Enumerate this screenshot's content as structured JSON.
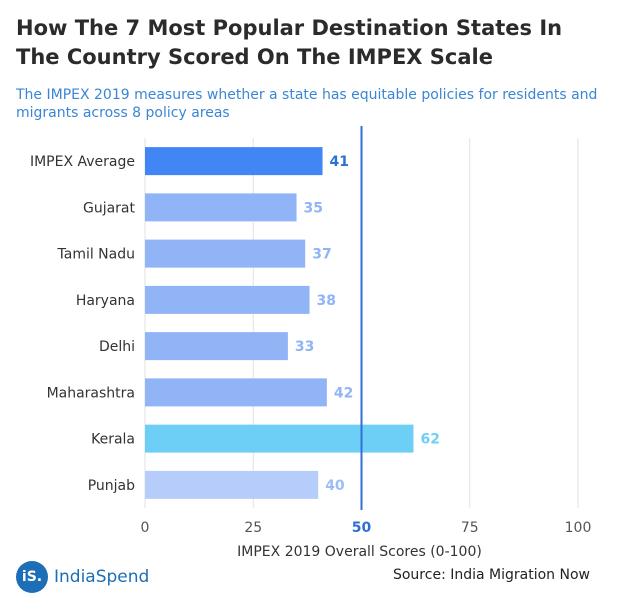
{
  "header": {
    "title": "How The 7 Most Popular Destination States In The Country Scored On The IMPEX Scale",
    "subtitle": "The IMPEX 2019 measures whether a state has equitable policies for residents and migrants across 8 policy areas"
  },
  "chart_data": {
    "type": "bar",
    "orientation": "horizontal",
    "categories": [
      "IMPEX Average",
      "Gujarat",
      "Tamil Nadu",
      "Haryana",
      "Delhi",
      "Maharashtra",
      "Kerala",
      "Punjab"
    ],
    "values": [
      41,
      35,
      37,
      38,
      33,
      42,
      62,
      40
    ],
    "bar_colors": [
      "#4285f4",
      "#91b4f7",
      "#91b4f7",
      "#91b4f7",
      "#91b4f7",
      "#91b4f7",
      "#6dcff6",
      "#b6cdfb"
    ],
    "label_colors": [
      "#2f6fd6",
      "#91b4f7",
      "#91b4f7",
      "#91b4f7",
      "#91b4f7",
      "#91b4f7",
      "#6dcff6",
      "#9bbcf8"
    ],
    "xlabel": "IMPEX 2019 Overall Scores (0-100)",
    "xlim": [
      0,
      100
    ],
    "xticks": [
      "0",
      "25",
      "50",
      "75",
      "100"
    ],
    "xtick_values": [
      0,
      25,
      50,
      75,
      100
    ],
    "reference_line": {
      "value": 50,
      "color": "#2f6fd6"
    }
  },
  "footer": {
    "logo_mark": "iS.",
    "logo_text": "IndiaSpend",
    "source": "Source: India Migration Now"
  }
}
